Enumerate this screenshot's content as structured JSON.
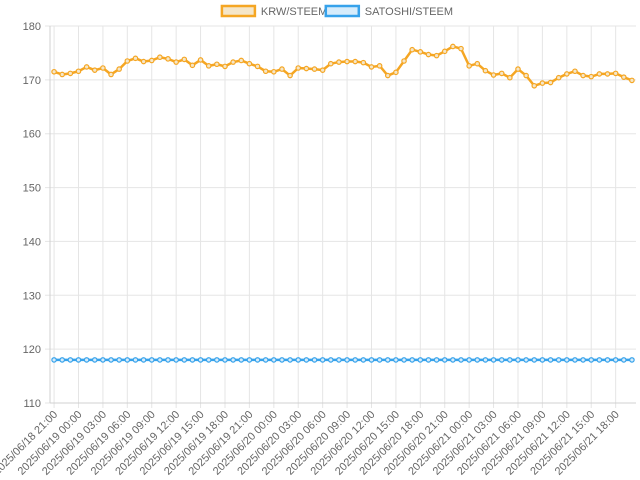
{
  "chart_data": {
    "type": "line",
    "title": "",
    "xlabel": "",
    "ylabel": "",
    "ylim": [
      110,
      180
    ],
    "yticks": [
      110,
      120,
      130,
      140,
      150,
      160,
      170,
      180
    ],
    "grid": true,
    "legend_position": "top-center",
    "x_tick_labels": [
      "2025/06/18 21:00",
      "2025/06/19 00:00",
      "2025/06/19 03:00",
      "2025/06/19 06:00",
      "2025/06/19 09:00",
      "2025/06/19 12:00",
      "2025/06/19 15:00",
      "2025/06/19 18:00",
      "2025/06/19 21:00",
      "2025/06/20 00:00",
      "2025/06/20 03:00",
      "2025/06/20 06:00",
      "2025/06/20 09:00",
      "2025/06/20 12:00",
      "2025/06/20 15:00",
      "2025/06/20 18:00",
      "2025/06/20 21:00",
      "2025/06/21 00:00",
      "2025/06/21 03:00",
      "2025/06/21 06:00",
      "2025/06/21 09:00",
      "2025/06/21 12:00",
      "2025/06/21 15:00",
      "2025/06/21 18:00"
    ],
    "series": [
      {
        "name": "KRW/STEEM",
        "color": "#f5a623",
        "fill": "#f5e6c8",
        "values": [
          171.5,
          171.0,
          171.2,
          171.6,
          172.4,
          171.8,
          172.2,
          171.0,
          172.0,
          173.5,
          174.0,
          173.4,
          173.6,
          174.2,
          173.9,
          173.3,
          173.8,
          172.7,
          173.7,
          172.6,
          172.9,
          172.5,
          173.3,
          173.6,
          173.0,
          172.5,
          171.6,
          171.5,
          172.0,
          170.8,
          172.2,
          172.1,
          172.0,
          171.8,
          173.0,
          173.3,
          173.4,
          173.4,
          173.2,
          172.4,
          172.6,
          170.8,
          171.4,
          173.5,
          175.6,
          175.2,
          174.7,
          174.5,
          175.3,
          176.2,
          175.8,
          172.6,
          173.0,
          171.7,
          170.9,
          171.2,
          170.4,
          172.0,
          170.8,
          168.9,
          169.4,
          169.5,
          170.4,
          171.1,
          171.6,
          170.8,
          170.6,
          171.1,
          171.1,
          171.2,
          170.5,
          169.9
        ]
      },
      {
        "name": "SATOSHI/STEEM",
        "color": "#36a2eb",
        "fill": "#d6ecfb",
        "values": [
          118,
          118,
          118,
          118,
          118,
          118,
          118,
          118,
          118,
          118,
          118,
          118,
          118,
          118,
          118,
          118,
          118,
          118,
          118,
          118,
          118,
          118,
          118,
          118,
          118,
          118,
          118,
          118,
          118,
          118,
          118,
          118,
          118,
          118,
          118,
          118,
          118,
          118,
          118,
          118,
          118,
          118,
          118,
          118,
          118,
          118,
          118,
          118,
          118,
          118,
          118,
          118,
          118,
          118,
          118,
          118,
          118,
          118,
          118,
          118,
          118,
          118,
          118,
          118,
          118,
          118,
          118,
          118,
          118,
          118,
          118,
          118
        ]
      }
    ]
  }
}
